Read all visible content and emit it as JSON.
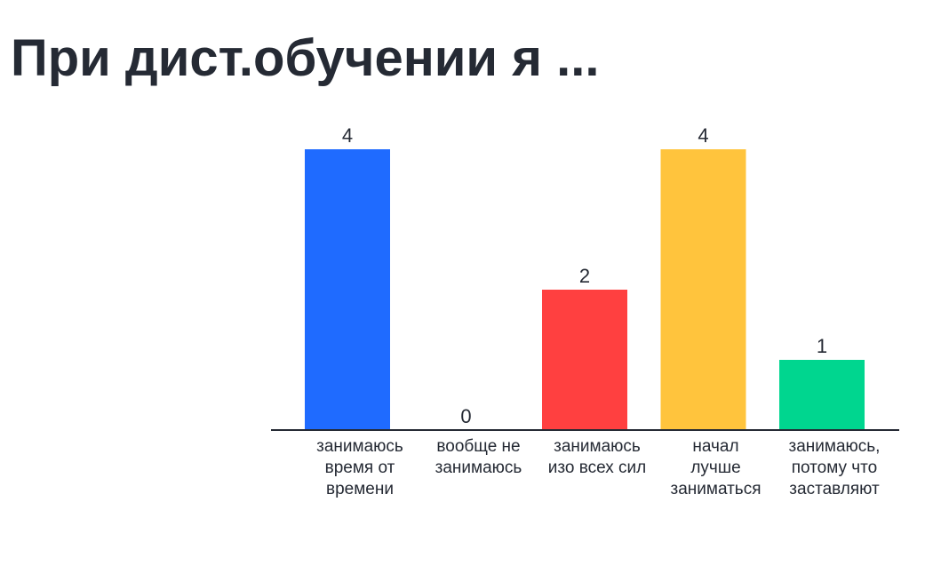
{
  "title": "При дист.обучении я ...",
  "chart_data": {
    "type": "bar",
    "categories": [
      [
        "занимаюсь",
        "время от",
        "времени"
      ],
      [
        "вообще не",
        "занимаюсь"
      ],
      [
        "занимаюсь",
        "изо всех сил"
      ],
      [
        "начал",
        "лучше",
        "заниматься"
      ],
      [
        "занимаюсь,",
        "потому что",
        "заставляют"
      ]
    ],
    "values": [
      4,
      0,
      2,
      4,
      1
    ],
    "value_labels": [
      "4",
      "0",
      "2",
      "4",
      "1"
    ],
    "colors": [
      "#1f6bff",
      "#1f6bff",
      "#ff4040",
      "#ffc43d",
      "#00d68f"
    ],
    "axis_color": "#252a34",
    "ylim": [
      0,
      4
    ],
    "grid": false,
    "legend": "none"
  }
}
